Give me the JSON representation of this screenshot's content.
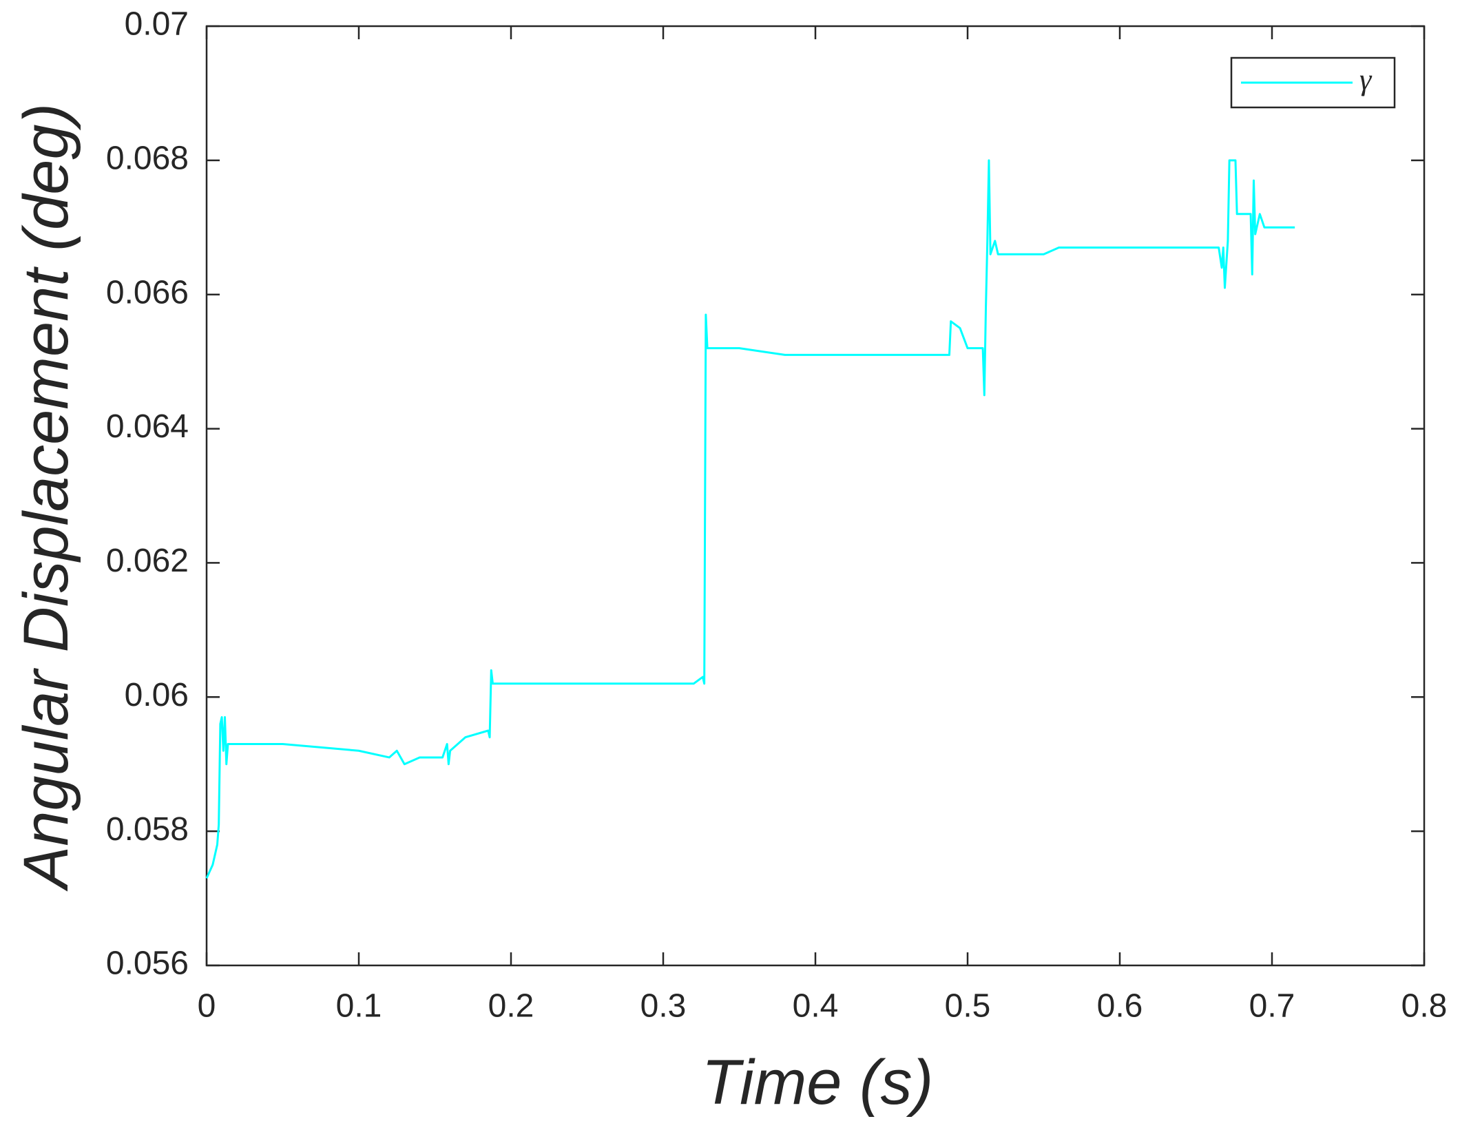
{
  "chart_data": {
    "type": "line",
    "x_label": "Time (s)",
    "y_label": "Angular Displacement (deg)",
    "xlim": [
      0,
      0.8
    ],
    "xticks": [
      0,
      0.1,
      0.2,
      0.3,
      0.4,
      0.5,
      0.6,
      0.7,
      0.8
    ],
    "ylim": [
      0.056,
      0.07
    ],
    "yticks": [
      0.056,
      0.058,
      0.06,
      0.062,
      0.064,
      0.066,
      0.068,
      0.07
    ],
    "grid": false,
    "legend": "upper right",
    "x": [
      0,
      0.004,
      0.007,
      0.008,
      0.009,
      0.01,
      0.011,
      0.012,
      0.013,
      0.014,
      0.05,
      0.1,
      0.12,
      0.125,
      0.13,
      0.14,
      0.155,
      0.158,
      0.159,
      0.16,
      0.17,
      0.185,
      0.186,
      0.187,
      0.188,
      0.2,
      0.25,
      0.29,
      0.32,
      0.326,
      0.327,
      0.328,
      0.329,
      0.35,
      0.38,
      0.45,
      0.488,
      0.489,
      0.495,
      0.5,
      0.51,
      0.511,
      0.512,
      0.513,
      0.514,
      0.515,
      0.518,
      0.52,
      0.55,
      0.56,
      0.6,
      0.65,
      0.665,
      0.667,
      0.668,
      0.669,
      0.671,
      0.672,
      0.676,
      0.677,
      0.686,
      0.687,
      0.688,
      0.689,
      0.692,
      0.695,
      0.715
    ],
    "series": [
      {
        "name": "γ",
        "color": "#00ffff",
        "values": [
          0.0573,
          0.0575,
          0.0578,
          0.0581,
          0.0596,
          0.0597,
          0.0592,
          0.0597,
          0.059,
          0.0593,
          0.0593,
          0.0592,
          0.0591,
          0.0592,
          0.059,
          0.0591,
          0.0591,
          0.0593,
          0.059,
          0.0592,
          0.0594,
          0.0595,
          0.0594,
          0.0604,
          0.0602,
          0.0602,
          0.0602,
          0.0602,
          0.0602,
          0.0603,
          0.0602,
          0.0657,
          0.0652,
          0.0652,
          0.0651,
          0.0651,
          0.0651,
          0.0656,
          0.0655,
          0.0652,
          0.0652,
          0.0645,
          0.0658,
          0.0668,
          0.068,
          0.0666,
          0.0668,
          0.0666,
          0.0666,
          0.0667,
          0.0667,
          0.0667,
          0.0667,
          0.0664,
          0.0667,
          0.0661,
          0.0668,
          0.068,
          0.068,
          0.0672,
          0.0672,
          0.0663,
          0.0677,
          0.0669,
          0.0672,
          0.067,
          0.067
        ]
      }
    ]
  }
}
